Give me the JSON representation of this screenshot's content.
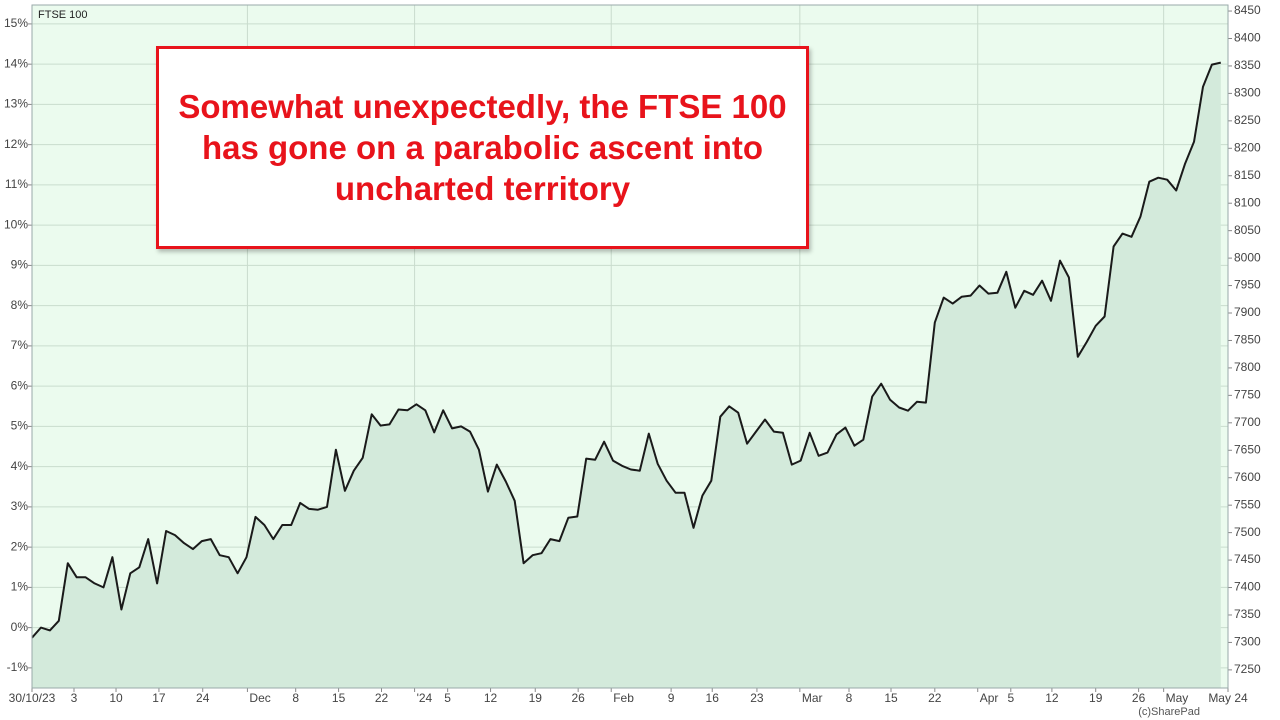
{
  "chart_data": {
    "type": "line",
    "annotation": "Somewhat unexpectedly, the FTSE 100 has gone on a parabolic ascent into uncharted territory",
    "source": "(c)SharePad",
    "grid": true,
    "series": [
      {
        "name": "FTSE 100",
        "color": "#1a1a1a",
        "fill": "#d3eadb",
        "values": [
          -0.25,
          0,
          -0.07,
          0.17,
          1.6,
          1.25,
          1.25,
          1.1,
          1.0,
          1.75,
          0.45,
          1.35,
          1.5,
          2.2,
          1.1,
          2.4,
          2.3,
          2.1,
          1.95,
          2.15,
          2.2,
          1.8,
          1.75,
          1.35,
          1.75,
          2.75,
          2.55,
          2.2,
          2.55,
          2.55,
          3.1,
          2.95,
          2.93,
          3.0,
          4.42,
          3.4,
          3.9,
          4.22,
          5.3,
          5.02,
          5.05,
          5.42,
          5.4,
          5.55,
          5.4,
          4.85,
          5.4,
          4.95,
          5.0,
          4.87,
          4.42,
          3.38,
          4.05,
          3.63,
          3.15,
          1.6,
          1.8,
          1.85,
          2.2,
          2.15,
          2.73,
          2.76,
          4.2,
          4.17,
          4.62,
          4.15,
          4.02,
          3.93,
          3.9,
          4.82,
          4.07,
          3.65,
          3.35,
          3.35,
          2.48,
          3.28,
          3.65,
          5.24,
          5.5,
          5.34,
          4.57,
          4.87,
          5.17,
          4.87,
          4.84,
          4.05,
          4.15,
          4.84,
          4.27,
          4.35,
          4.8,
          4.97,
          4.52,
          4.67,
          5.74,
          6.06,
          5.66,
          5.47,
          5.39,
          5.61,
          5.59,
          7.58,
          8.2,
          8.05,
          8.22,
          8.25,
          8.5,
          8.3,
          8.32,
          8.84,
          7.95,
          8.37,
          8.27,
          8.62,
          8.12,
          9.12,
          8.7,
          6.73,
          7.1,
          7.5,
          7.73,
          9.47,
          9.79,
          9.71,
          10.21,
          11.08,
          11.18,
          11.13,
          10.86,
          11.53,
          12.07,
          13.44,
          13.99,
          14.04
        ]
      }
    ],
    "xlim": [
      0,
      133.8
    ],
    "xticks": [
      {
        "value": 0,
        "label": "30/10/23"
      },
      {
        "value": 4.7,
        "label": "3"
      },
      {
        "value": 9.4,
        "label": "10"
      },
      {
        "value": 14.2,
        "label": "17"
      },
      {
        "value": 19.1,
        "label": "24"
      },
      {
        "value": 24.1,
        "label": "Dec"
      },
      {
        "value": 29.5,
        "label": "8"
      },
      {
        "value": 34.3,
        "label": "15"
      },
      {
        "value": 39.1,
        "label": "22"
      },
      {
        "value": 42.8,
        "label": "'24"
      },
      {
        "value": 46.5,
        "label": "5"
      },
      {
        "value": 51.3,
        "label": "12"
      },
      {
        "value": 56.3,
        "label": "19"
      },
      {
        "value": 61.1,
        "label": "26"
      },
      {
        "value": 64.8,
        "label": "Feb"
      },
      {
        "value": 71.5,
        "label": "9"
      },
      {
        "value": 76.1,
        "label": "16"
      },
      {
        "value": 81.1,
        "label": "23"
      },
      {
        "value": 85.9,
        "label": "Mar"
      },
      {
        "value": 91.4,
        "label": "8"
      },
      {
        "value": 96.1,
        "label": "15"
      },
      {
        "value": 101,
        "label": "22"
      },
      {
        "value": 105.8,
        "label": "Apr"
      },
      {
        "value": 109.5,
        "label": "5"
      },
      {
        "value": 114.1,
        "label": "12"
      },
      {
        "value": 119,
        "label": "19"
      },
      {
        "value": 123.8,
        "label": "26"
      },
      {
        "value": 126.6,
        "label": "May"
      },
      {
        "value": 133.8,
        "label": "May 24"
      }
    ],
    "ylim": [
      -1.5,
      15.47
    ],
    "yticks": [
      {
        "value": -1,
        "label": "-1%"
      },
      {
        "value": 0,
        "label": "0%"
      },
      {
        "value": 1,
        "label": "1%"
      },
      {
        "value": 2,
        "label": "2%"
      },
      {
        "value": 3,
        "label": "3%"
      },
      {
        "value": 4,
        "label": "4%"
      },
      {
        "value": 5,
        "label": "5%"
      },
      {
        "value": 6,
        "label": "6%"
      },
      {
        "value": 7,
        "label": "7%"
      },
      {
        "value": 8,
        "label": "8%"
      },
      {
        "value": 9,
        "label": "9%"
      },
      {
        "value": 10,
        "label": "10%"
      },
      {
        "value": 11,
        "label": "11%"
      },
      {
        "value": 12,
        "label": "12%"
      },
      {
        "value": 13,
        "label": "13%"
      },
      {
        "value": 14,
        "label": "14%"
      },
      {
        "value": 15,
        "label": "15%"
      }
    ],
    "y2lim": [
      7217,
      8461
    ],
    "y2ticks": [
      7250,
      7300,
      7350,
      7400,
      7450,
      7500,
      7550,
      7600,
      7650,
      7700,
      7750,
      7800,
      7850,
      7900,
      7950,
      8000,
      8050,
      8100,
      8150,
      8200,
      8250,
      8300,
      8350,
      8400,
      8450
    ]
  }
}
